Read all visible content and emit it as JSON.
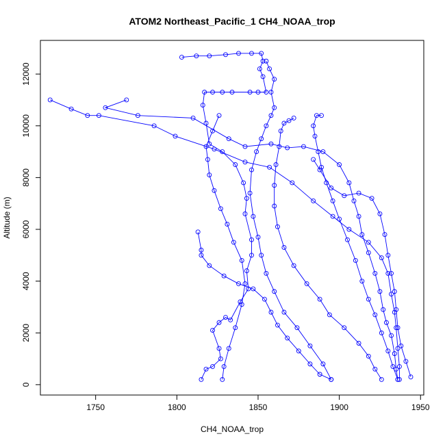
{
  "chart_data": {
    "type": "line",
    "title": "ATOM2 Northeast_Pacific_1 CH4_NOAA_trop",
    "xlabel": "CH4_NOAA_trop",
    "ylabel": "Altitude (m)",
    "xlim": [
      1716,
      1952
    ],
    "ylim": [
      -400,
      13300
    ],
    "x_ticks": [
      1750,
      1800,
      1850,
      1900,
      1950
    ],
    "y_ticks": [
      0,
      2000,
      4000,
      6000,
      8000,
      10000,
      12000
    ],
    "grid": false,
    "legend": "none",
    "series": [
      {
        "color": "#0000ff",
        "marker": "open-circle",
        "points": [
          [
            1815,
            200
          ],
          [
            1818,
            600
          ],
          [
            1822,
            700
          ],
          [
            1827,
            1000
          ],
          [
            1826,
            1400
          ],
          [
            1822,
            2100
          ],
          [
            1826,
            2400
          ],
          [
            1830,
            2600
          ],
          [
            1833,
            2500
          ],
          [
            1839,
            3200
          ],
          [
            1844,
            3700
          ],
          [
            1843,
            4400
          ],
          [
            1846,
            5000
          ],
          [
            1846,
            5600
          ],
          [
            1842,
            6600
          ],
          [
            1843,
            7200
          ],
          [
            1841,
            7800
          ],
          [
            1836,
            8500
          ],
          [
            1828,
            9000
          ],
          [
            1820,
            9300
          ],
          [
            1818,
            10100
          ],
          [
            1816,
            10800
          ],
          [
            1817,
            11300
          ],
          [
            1822,
            11300
          ],
          [
            1828,
            11300
          ],
          [
            1834,
            11300
          ],
          [
            1845,
            11300
          ],
          [
            1850,
            11300
          ],
          [
            1855,
            11300
          ],
          [
            1853,
            11900
          ],
          [
            1851,
            12200
          ],
          [
            1853,
            12500
          ],
          [
            1852,
            12800
          ],
          [
            1846,
            12800
          ],
          [
            1838,
            12800
          ],
          [
            1830,
            12750
          ],
          [
            1820,
            12700
          ],
          [
            1812,
            12700
          ],
          [
            1803,
            12650
          ]
        ]
      },
      {
        "color": "#0000ff",
        "marker": "open-circle",
        "points": [
          [
            1895,
            200
          ],
          [
            1890,
            800
          ],
          [
            1882,
            1500
          ],
          [
            1874,
            2200
          ],
          [
            1866,
            2800
          ],
          [
            1860,
            3600
          ],
          [
            1855,
            4300
          ],
          [
            1852,
            5000
          ],
          [
            1850,
            5700
          ],
          [
            1847,
            6500
          ],
          [
            1845,
            7400
          ],
          [
            1846,
            8300
          ],
          [
            1849,
            9000
          ],
          [
            1852,
            9500
          ],
          [
            1855,
            10000
          ],
          [
            1858,
            10400
          ],
          [
            1860,
            10700
          ],
          [
            1858,
            11300
          ],
          [
            1860,
            11800
          ],
          [
            1857,
            12200
          ],
          [
            1855,
            12500
          ]
        ]
      },
      {
        "color": "#0000ff",
        "marker": "open-circle",
        "points": [
          [
            1926,
            200
          ],
          [
            1922,
            600
          ],
          [
            1918,
            1100
          ],
          [
            1912,
            1600
          ],
          [
            1903,
            2200
          ],
          [
            1894,
            2700
          ],
          [
            1888,
            3300
          ],
          [
            1880,
            3900
          ],
          [
            1872,
            4600
          ],
          [
            1866,
            5300
          ],
          [
            1862,
            6100
          ],
          [
            1860,
            6900
          ],
          [
            1860,
            7700
          ],
          [
            1861,
            8500
          ],
          [
            1863,
            9200
          ],
          [
            1864,
            9800
          ],
          [
            1866,
            10100
          ],
          [
            1869,
            10200
          ],
          [
            1872,
            10300
          ]
        ]
      },
      {
        "color": "#0000ff",
        "marker": "open-circle",
        "points": [
          [
            1936,
            200
          ],
          [
            1933,
            700
          ],
          [
            1930,
            1300
          ],
          [
            1926,
            2000
          ],
          [
            1922,
            2700
          ],
          [
            1918,
            3300
          ],
          [
            1914,
            4000
          ],
          [
            1910,
            4800
          ],
          [
            1905,
            5600
          ],
          [
            1900,
            6400
          ],
          [
            1896,
            7100
          ],
          [
            1892,
            7800
          ],
          [
            1889,
            8400
          ],
          [
            1887,
            9000
          ],
          [
            1885,
            9600
          ],
          [
            1884,
            10000
          ],
          [
            1886,
            10400
          ],
          [
            1889,
            10400
          ]
        ]
      },
      {
        "color": "#0000ff",
        "marker": "open-circle",
        "points": [
          [
            1944,
            300
          ],
          [
            1941,
            900
          ],
          [
            1938,
            1500
          ],
          [
            1936,
            2200
          ],
          [
            1935,
            2900
          ],
          [
            1934,
            3600
          ],
          [
            1932,
            4300
          ],
          [
            1930,
            5000
          ],
          [
            1928,
            5800
          ],
          [
            1925,
            6600
          ],
          [
            1920,
            7200
          ],
          [
            1912,
            7400
          ],
          [
            1903,
            7300
          ],
          [
            1895,
            7600
          ],
          [
            1888,
            8300
          ],
          [
            1884,
            8700
          ]
        ]
      },
      {
        "color": "#0000ff",
        "marker": "open-circle",
        "points": [
          [
            1722,
            11000
          ],
          [
            1735,
            10650
          ],
          [
            1745,
            10400
          ],
          [
            1752,
            10400
          ],
          [
            1786,
            10000
          ],
          [
            1799,
            9600
          ],
          [
            1823,
            9100
          ],
          [
            1842,
            8600
          ],
          [
            1857,
            8400
          ],
          [
            1871,
            7800
          ],
          [
            1884,
            7100
          ],
          [
            1896,
            6500
          ],
          [
            1906,
            6000
          ],
          [
            1918,
            5500
          ],
          [
            1926,
            4900
          ],
          [
            1930,
            4300
          ],
          [
            1932,
            3500
          ],
          [
            1934,
            2800
          ],
          [
            1935,
            2200
          ],
          [
            1936,
            1400
          ],
          [
            1937,
            700
          ],
          [
            1937,
            200
          ]
        ]
      },
      {
        "color": "#0000ff",
        "marker": "open-circle",
        "points": [
          [
            1769,
            11000
          ],
          [
            1756,
            10700
          ],
          [
            1776,
            10400
          ],
          [
            1810,
            10300
          ],
          [
            1832,
            9500
          ],
          [
            1842,
            9200
          ],
          [
            1858,
            9300
          ],
          [
            1868,
            9150
          ],
          [
            1878,
            9200
          ],
          [
            1890,
            9000
          ],
          [
            1900,
            8500
          ],
          [
            1906,
            7800
          ],
          [
            1909,
            7100
          ],
          [
            1912,
            6500
          ],
          [
            1914,
            5800
          ],
          [
            1918,
            5100
          ],
          [
            1922,
            4300
          ],
          [
            1925,
            3600
          ],
          [
            1927,
            2900
          ],
          [
            1929,
            2400
          ],
          [
            1932,
            1900
          ],
          [
            1934,
            1200
          ],
          [
            1935,
            600
          ],
          [
            1936,
            200
          ]
        ]
      },
      {
        "color": "#0000ff",
        "marker": "open-circle",
        "points": [
          [
            1813,
            5900
          ],
          [
            1815,
            5200
          ],
          [
            1815,
            5000
          ],
          [
            1820,
            4600
          ],
          [
            1829,
            4200
          ],
          [
            1838,
            3900
          ],
          [
            1847,
            3700
          ],
          [
            1854,
            3300
          ],
          [
            1858,
            2800
          ],
          [
            1862,
            2300
          ],
          [
            1868,
            1800
          ],
          [
            1875,
            1300
          ],
          [
            1882,
            800
          ],
          [
            1888,
            400
          ],
          [
            1895,
            200
          ]
        ]
      },
      {
        "color": "#0000ff",
        "marker": "open-circle",
        "points": [
          [
            1828,
            200
          ],
          [
            1829,
            700
          ],
          [
            1832,
            1400
          ],
          [
            1836,
            2200
          ],
          [
            1840,
            3100
          ],
          [
            1842,
            3900
          ],
          [
            1840,
            4800
          ],
          [
            1835,
            5500
          ],
          [
            1831,
            6200
          ],
          [
            1827,
            6800
          ],
          [
            1823,
            7500
          ],
          [
            1820,
            8100
          ],
          [
            1819,
            8700
          ],
          [
            1818,
            9200
          ],
          [
            1822,
            9800
          ],
          [
            1826,
            10400
          ]
        ]
      }
    ]
  }
}
